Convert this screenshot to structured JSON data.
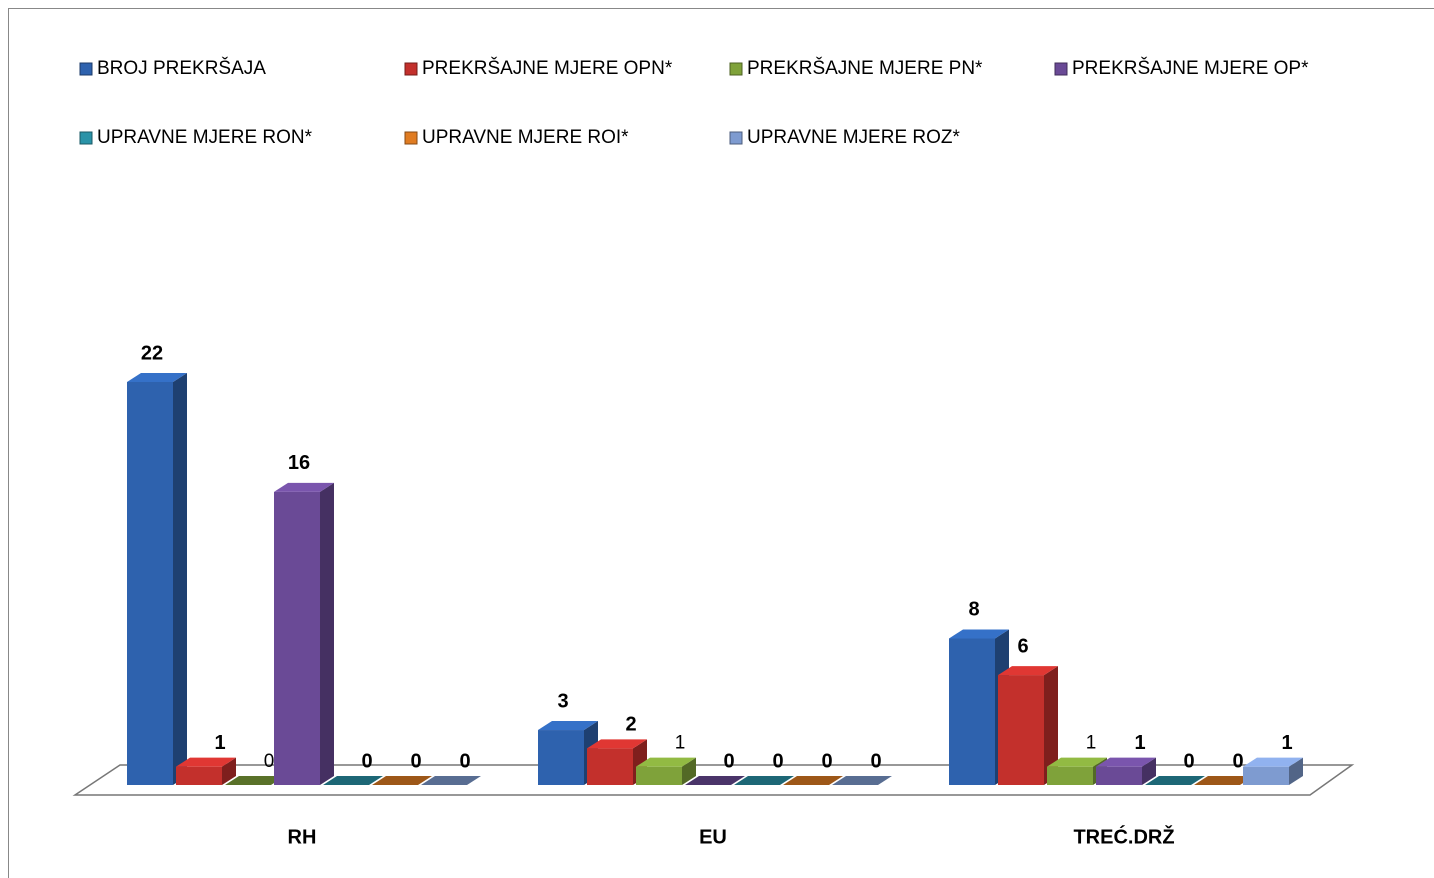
{
  "chart_data": {
    "type": "bar3d",
    "categories": [
      "RH",
      "EU",
      "TREĆ.DRŽ"
    ],
    "series": [
      {
        "name": "BROJ PREKRŠAJA",
        "color": "#2e62ae",
        "values": [
          22,
          3,
          8
        ]
      },
      {
        "name": "PREKRŠAJNE MJERE OPN*",
        "color": "#c3302c",
        "values": [
          1,
          2,
          6
        ]
      },
      {
        "name": "PREKRŠAJNE MJERE PN*",
        "color": "#7fa23a",
        "values": [
          0,
          1,
          1
        ]
      },
      {
        "name": "PREKRŠAJNE MJERE OP*",
        "color": "#6a4a96",
        "values": [
          16,
          0,
          1
        ]
      },
      {
        "name": "UPRAVNE MJERE RON*",
        "color": "#2a93a8",
        "values": [
          0,
          0,
          0
        ]
      },
      {
        "name": "UPRAVNE MJERE ROI*",
        "color": "#e07c22",
        "values": [
          0,
          0,
          0
        ]
      },
      {
        "name": "UPRAVNE MJERE ROZ*",
        "color": "#7e9bd0",
        "values": [
          0,
          0,
          1
        ]
      }
    ]
  }
}
